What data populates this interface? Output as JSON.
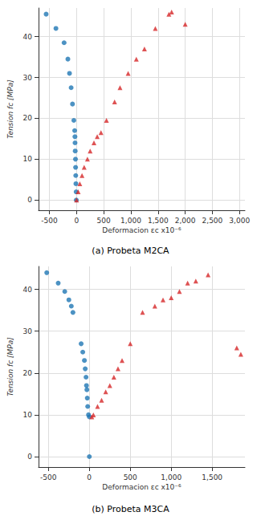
{
  "chart_data": [
    {
      "type": "scatter",
      "title": "(a) Probeta M2CA",
      "x_label": "Deformacion εc x10⁻⁶",
      "y_label": "Tension fc [MPa]",
      "xlim": [
        -700,
        3100
      ],
      "xticks": [
        -500,
        0,
        500,
        1000,
        1500,
        2000,
        2500,
        3000
      ],
      "ylim": [
        -2.5,
        47
      ],
      "yticks": [
        0,
        10,
        20,
        30,
        40
      ],
      "grid": true,
      "series": [
        {
          "color": "#1f77b4",
          "marker": "circle",
          "values": [
            [
              -5,
              0
            ],
            [
              -8,
              2
            ],
            [
              -12,
              4
            ],
            [
              -15,
              6
            ],
            [
              -18,
              8
            ],
            [
              -20,
              10
            ],
            [
              -25,
              12
            ],
            [
              -28,
              14
            ],
            [
              -30,
              15.5
            ],
            [
              -35,
              17
            ],
            [
              -50,
              19.5
            ],
            [
              -75,
              23.5
            ],
            [
              -100,
              27.5
            ],
            [
              -130,
              31
            ],
            [
              -160,
              34.5
            ],
            [
              -230,
              38.5
            ],
            [
              -380,
              42
            ],
            [
              -560,
              45.5
            ]
          ]
        },
        {
          "color": "#d62728",
          "marker": "triangle",
          "values": [
            [
              0,
              0
            ],
            [
              30,
              2
            ],
            [
              60,
              4
            ],
            [
              100,
              6
            ],
            [
              140,
              8
            ],
            [
              200,
              10
            ],
            [
              250,
              12
            ],
            [
              320,
              14
            ],
            [
              380,
              15.5
            ],
            [
              450,
              16.5
            ],
            [
              550,
              19.5
            ],
            [
              700,
              24
            ],
            [
              800,
              27.5
            ],
            [
              950,
              31
            ],
            [
              1100,
              34.5
            ],
            [
              1250,
              37
            ],
            [
              1450,
              42
            ],
            [
              1700,
              45.5
            ],
            [
              1750,
              46
            ],
            [
              2000,
              43
            ]
          ]
        }
      ]
    },
    {
      "type": "scatter",
      "title": "(b) Probeta M3CA",
      "x_label": "Deformacion εc x10⁻⁶",
      "y_label": "Tension fc [MPa]",
      "xlim": [
        -620,
        1900
      ],
      "xticks": [
        -500,
        0,
        500,
        1000,
        1500
      ],
      "ylim": [
        -2.5,
        45.5
      ],
      "yticks": [
        0,
        10,
        20,
        30,
        40
      ],
      "grid": true,
      "series": [
        {
          "color": "#1f77b4",
          "marker": "circle",
          "values": [
            [
              0,
              0
            ],
            [
              0,
              9.5
            ],
            [
              -10,
              10
            ],
            [
              -20,
              12
            ],
            [
              -25,
              14
            ],
            [
              -30,
              16
            ],
            [
              -35,
              17
            ],
            [
              -40,
              19
            ],
            [
              -50,
              21
            ],
            [
              -60,
              23
            ],
            [
              -80,
              25
            ],
            [
              -100,
              27
            ],
            [
              -200,
              34.5
            ],
            [
              -220,
              36
            ],
            [
              -250,
              37.5
            ],
            [
              -300,
              39.5
            ],
            [
              -380,
              41.5
            ],
            [
              -520,
              44
            ]
          ]
        },
        {
          "color": "#d62728",
          "marker": "triangle",
          "values": [
            [
              30,
              9.5
            ],
            [
              50,
              10
            ],
            [
              100,
              12
            ],
            [
              150,
              13.5
            ],
            [
              200,
              15.5
            ],
            [
              250,
              17
            ],
            [
              300,
              19
            ],
            [
              350,
              21
            ],
            [
              400,
              23
            ],
            [
              500,
              27
            ],
            [
              650,
              34.5
            ],
            [
              800,
              36
            ],
            [
              900,
              37.5
            ],
            [
              1000,
              38
            ],
            [
              1100,
              39.5
            ],
            [
              1200,
              41.5
            ],
            [
              1300,
              42
            ],
            [
              1450,
              43.5
            ],
            [
              1800,
              26
            ],
            [
              1850,
              24.5
            ]
          ]
        }
      ]
    }
  ]
}
